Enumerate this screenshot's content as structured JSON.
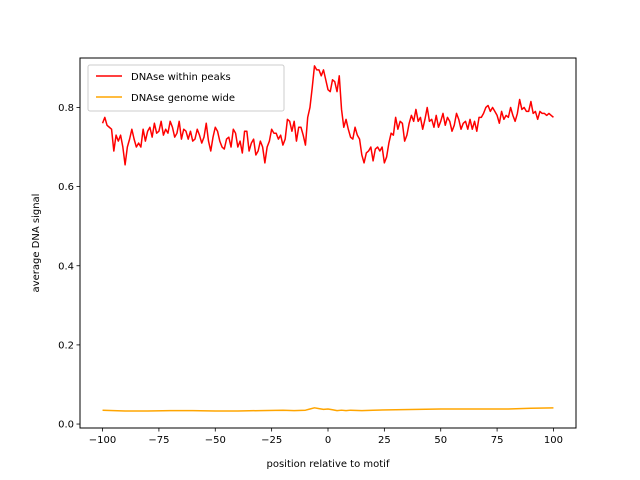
{
  "chart_data": {
    "type": "line",
    "title": "",
    "xlabel": "position relative to motif",
    "ylabel": "average DNA signal",
    "xlim": [
      -110,
      110
    ],
    "ylim": [
      -0.01,
      0.925
    ],
    "xticks": [
      -100,
      -75,
      -50,
      -25,
      0,
      25,
      50,
      75,
      100
    ],
    "xtick_labels": [
      "−100",
      "−75",
      "−50",
      "−25",
      "0",
      "25",
      "50",
      "75",
      "100"
    ],
    "yticks": [
      0.0,
      0.2,
      0.4,
      0.6,
      0.8
    ],
    "ytick_labels": [
      "0.0",
      "0.2",
      "0.4",
      "0.6",
      "0.8"
    ],
    "grid": false,
    "legend_position": "top-left",
    "series": [
      {
        "name": "DNAse within peaks",
        "color": "#ff0000",
        "points": [
          [
            -100,
            0.76
          ],
          [
            -99,
            0.775
          ],
          [
            -98,
            0.755
          ],
          [
            -97,
            0.75
          ],
          [
            -96,
            0.745
          ],
          [
            -95,
            0.69
          ],
          [
            -94,
            0.73
          ],
          [
            -93,
            0.715
          ],
          [
            -92,
            0.73
          ],
          [
            -91,
            0.7
          ],
          [
            -90,
            0.655
          ],
          [
            -89,
            0.7
          ],
          [
            -88,
            0.72
          ],
          [
            -87,
            0.745
          ],
          [
            -86,
            0.72
          ],
          [
            -85,
            0.7
          ],
          [
            -84,
            0.71
          ],
          [
            -83,
            0.7
          ],
          [
            -82,
            0.745
          ],
          [
            -81,
            0.715
          ],
          [
            -80,
            0.74
          ],
          [
            -79,
            0.75
          ],
          [
            -78,
            0.725
          ],
          [
            -77,
            0.76
          ],
          [
            -76,
            0.735
          ],
          [
            -75,
            0.74
          ],
          [
            -74,
            0.765
          ],
          [
            -73,
            0.73
          ],
          [
            -72,
            0.745
          ],
          [
            -71,
            0.735
          ],
          [
            -70,
            0.765
          ],
          [
            -69,
            0.75
          ],
          [
            -68,
            0.725
          ],
          [
            -67,
            0.735
          ],
          [
            -66,
            0.765
          ],
          [
            -65,
            0.72
          ],
          [
            -64,
            0.745
          ],
          [
            -63,
            0.74
          ],
          [
            -62,
            0.72
          ],
          [
            -61,
            0.74
          ],
          [
            -60,
            0.715
          ],
          [
            -59,
            0.72
          ],
          [
            -58,
            0.745
          ],
          [
            -57,
            0.73
          ],
          [
            -56,
            0.71
          ],
          [
            -55,
            0.725
          ],
          [
            -54,
            0.76
          ],
          [
            -53,
            0.715
          ],
          [
            -52,
            0.69
          ],
          [
            -51,
            0.725
          ],
          [
            -50,
            0.75
          ],
          [
            -49,
            0.74
          ],
          [
            -48,
            0.715
          ],
          [
            -47,
            0.7
          ],
          [
            -46,
            0.695
          ],
          [
            -45,
            0.72
          ],
          [
            -44,
            0.725
          ],
          [
            -43,
            0.7
          ],
          [
            -42,
            0.745
          ],
          [
            -41,
            0.735
          ],
          [
            -40,
            0.7
          ],
          [
            -39,
            0.715
          ],
          [
            -38,
            0.685
          ],
          [
            -37,
            0.74
          ],
          [
            -36,
            0.74
          ],
          [
            -35,
            0.69
          ],
          [
            -34,
            0.71
          ],
          [
            -33,
            0.72
          ],
          [
            -32,
            0.68
          ],
          [
            -31,
            0.69
          ],
          [
            -30,
            0.715
          ],
          [
            -29,
            0.7
          ],
          [
            -28,
            0.66
          ],
          [
            -27,
            0.7
          ],
          [
            -26,
            0.715
          ],
          [
            -25,
            0.745
          ],
          [
            -24,
            0.735
          ],
          [
            -23,
            0.735
          ],
          [
            -22,
            0.72
          ],
          [
            -21,
            0.73
          ],
          [
            -20,
            0.705
          ],
          [
            -19,
            0.72
          ],
          [
            -18,
            0.77
          ],
          [
            -17,
            0.765
          ],
          [
            -16,
            0.74
          ],
          [
            -15,
            0.765
          ],
          [
            -14,
            0.715
          ],
          [
            -13,
            0.75
          ],
          [
            -12,
            0.75
          ],
          [
            -11,
            0.73
          ],
          [
            -10,
            0.705
          ],
          [
            -9,
            0.775
          ],
          [
            -8,
            0.8
          ],
          [
            -7,
            0.85
          ],
          [
            -6,
            0.905
          ],
          [
            -5,
            0.895
          ],
          [
            -4,
            0.895
          ],
          [
            -3,
            0.88
          ],
          [
            -2,
            0.895
          ],
          [
            -1,
            0.87
          ],
          [
            0,
            0.845
          ],
          [
            1,
            0.84
          ],
          [
            2,
            0.87
          ],
          [
            3,
            0.865
          ],
          [
            4,
            0.84
          ],
          [
            5,
            0.88
          ],
          [
            6,
            0.795
          ],
          [
            7,
            0.75
          ],
          [
            8,
            0.77
          ],
          [
            9,
            0.745
          ],
          [
            10,
            0.725
          ],
          [
            11,
            0.72
          ],
          [
            12,
            0.75
          ],
          [
            13,
            0.73
          ],
          [
            14,
            0.72
          ],
          [
            15,
            0.68
          ],
          [
            16,
            0.66
          ],
          [
            17,
            0.685
          ],
          [
            18,
            0.69
          ],
          [
            19,
            0.7
          ],
          [
            20,
            0.665
          ],
          [
            21,
            0.695
          ],
          [
            22,
            0.7
          ],
          [
            23,
            0.69
          ],
          [
            24,
            0.7
          ],
          [
            25,
            0.66
          ],
          [
            26,
            0.675
          ],
          [
            27,
            0.71
          ],
          [
            28,
            0.735
          ],
          [
            29,
            0.73
          ],
          [
            30,
            0.775
          ],
          [
            31,
            0.745
          ],
          [
            32,
            0.765
          ],
          [
            33,
            0.76
          ],
          [
            34,
            0.715
          ],
          [
            35,
            0.73
          ],
          [
            36,
            0.76
          ],
          [
            37,
            0.78
          ],
          [
            38,
            0.765
          ],
          [
            39,
            0.795
          ],
          [
            40,
            0.765
          ],
          [
            41,
            0.775
          ],
          [
            42,
            0.745
          ],
          [
            43,
            0.77
          ],
          [
            44,
            0.8
          ],
          [
            45,
            0.765
          ],
          [
            46,
            0.77
          ],
          [
            47,
            0.75
          ],
          [
            48,
            0.78
          ],
          [
            49,
            0.75
          ],
          [
            50,
            0.765
          ],
          [
            51,
            0.785
          ],
          [
            52,
            0.755
          ],
          [
            53,
            0.775
          ],
          [
            54,
            0.765
          ],
          [
            55,
            0.74
          ],
          [
            56,
            0.755
          ],
          [
            57,
            0.785
          ],
          [
            58,
            0.77
          ],
          [
            59,
            0.745
          ],
          [
            60,
            0.76
          ],
          [
            61,
            0.765
          ],
          [
            62,
            0.745
          ],
          [
            63,
            0.77
          ],
          [
            64,
            0.745
          ],
          [
            65,
            0.765
          ],
          [
            66,
            0.74
          ],
          [
            67,
            0.775
          ],
          [
            68,
            0.775
          ],
          [
            69,
            0.785
          ],
          [
            70,
            0.8
          ],
          [
            71,
            0.805
          ],
          [
            72,
            0.79
          ],
          [
            73,
            0.8
          ],
          [
            74,
            0.79
          ],
          [
            75,
            0.78
          ],
          [
            76,
            0.76
          ],
          [
            77,
            0.79
          ],
          [
            78,
            0.77
          ],
          [
            79,
            0.78
          ],
          [
            80,
            0.775
          ],
          [
            81,
            0.8
          ],
          [
            82,
            0.78
          ],
          [
            83,
            0.765
          ],
          [
            84,
            0.785
          ],
          [
            85,
            0.82
          ],
          [
            86,
            0.795
          ],
          [
            87,
            0.8
          ],
          [
            88,
            0.79
          ],
          [
            89,
            0.79
          ],
          [
            90,
            0.815
          ],
          [
            91,
            0.785
          ],
          [
            92,
            0.79
          ],
          [
            93,
            0.77
          ],
          [
            94,
            0.79
          ],
          [
            95,
            0.785
          ],
          [
            96,
            0.785
          ],
          [
            97,
            0.78
          ],
          [
            98,
            0.785
          ],
          [
            99,
            0.78
          ],
          [
            100,
            0.775
          ]
        ]
      },
      {
        "name": "DNAse genome wide",
        "color": "#ffa500",
        "points": [
          [
            -100,
            0.035
          ],
          [
            -90,
            0.033
          ],
          [
            -80,
            0.033
          ],
          [
            -70,
            0.034
          ],
          [
            -60,
            0.034
          ],
          [
            -50,
            0.033
          ],
          [
            -40,
            0.033
          ],
          [
            -30,
            0.034
          ],
          [
            -20,
            0.035
          ],
          [
            -15,
            0.034
          ],
          [
            -10,
            0.035
          ],
          [
            -8,
            0.038
          ],
          [
            -6,
            0.041
          ],
          [
            -4,
            0.039
          ],
          [
            -2,
            0.037
          ],
          [
            0,
            0.038
          ],
          [
            2,
            0.036
          ],
          [
            4,
            0.034
          ],
          [
            6,
            0.035
          ],
          [
            8,
            0.034
          ],
          [
            10,
            0.035
          ],
          [
            15,
            0.034
          ],
          [
            20,
            0.035
          ],
          [
            30,
            0.036
          ],
          [
            40,
            0.037
          ],
          [
            50,
            0.038
          ],
          [
            60,
            0.038
          ],
          [
            70,
            0.038
          ],
          [
            80,
            0.038
          ],
          [
            90,
            0.04
          ],
          [
            100,
            0.041
          ]
        ]
      }
    ]
  }
}
